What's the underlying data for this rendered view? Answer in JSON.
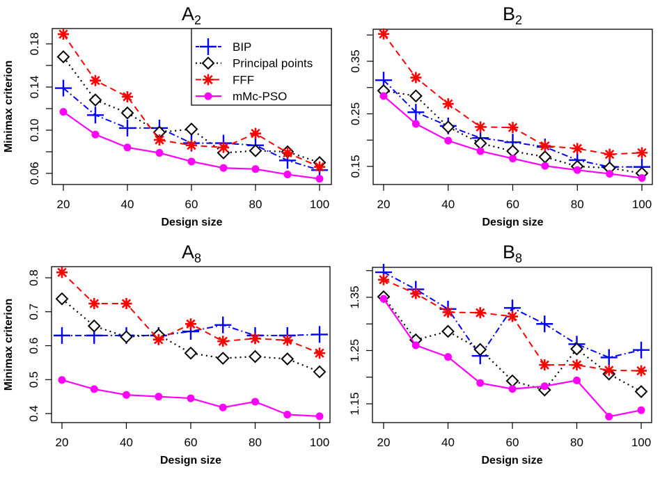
{
  "figure": {
    "ylabel": "Minimax criterion",
    "xlabel": "Design size"
  },
  "legend": {
    "placement": "top-right of panel A2",
    "entries": [
      {
        "name": "BIP",
        "color": "#0000ff",
        "line": "dashdot",
        "marker": "plus"
      },
      {
        "name": "Principal points",
        "color": "#000000",
        "line": "dotted",
        "marker": "diamond"
      },
      {
        "name": "FFF",
        "color": "#ff0000",
        "line": "dashed",
        "marker": "asterisk"
      },
      {
        "name": "mMc-PSO",
        "color": "#ff00ff",
        "line": "solid",
        "marker": "dot"
      }
    ]
  },
  "chart_data": [
    {
      "type": "line",
      "title": "A",
      "title_sub": "2",
      "xlabel": "Design size",
      "ylabel": "Minimax criterion",
      "x": [
        20,
        30,
        40,
        50,
        60,
        70,
        80,
        90,
        100
      ],
      "xticks": [
        20,
        40,
        60,
        80,
        100
      ],
      "yticks": [
        0.06,
        0.08,
        0.1,
        0.12,
        0.14,
        0.16,
        0.18
      ],
      "ytick_labels": [
        "0.06",
        "",
        "0.10",
        "",
        "0.14",
        "",
        "0.18"
      ],
      "grid": false,
      "show_ylabel": true,
      "has_legend": true,
      "series": [
        {
          "name": "BIP",
          "values": [
            0.139,
            0.114,
            0.102,
            0.102,
            0.088,
            0.088,
            0.086,
            0.072,
            0.063
          ]
        },
        {
          "name": "Principal points",
          "values": [
            0.168,
            0.128,
            0.116,
            0.098,
            0.101,
            0.079,
            0.081,
            0.08,
            0.07
          ]
        },
        {
          "name": "FFF",
          "values": [
            0.189,
            0.146,
            0.131,
            0.091,
            0.086,
            0.084,
            0.097,
            0.079,
            0.066
          ]
        },
        {
          "name": "mMc-PSO",
          "values": [
            0.117,
            0.096,
            0.084,
            0.079,
            0.071,
            0.065,
            0.064,
            0.059,
            0.055
          ]
        }
      ]
    },
    {
      "type": "line",
      "title": "B",
      "title_sub": "2",
      "xlabel": "Design size",
      "ylabel": "",
      "x": [
        20,
        30,
        40,
        50,
        60,
        70,
        80,
        90,
        100
      ],
      "xticks": [
        20,
        40,
        60,
        80,
        100
      ],
      "yticks": [
        0.15,
        0.2,
        0.25,
        0.3,
        0.35,
        0.4
      ],
      "ytick_labels": [
        "0.15",
        "",
        "0.25",
        "",
        "0.35",
        ""
      ],
      "grid": false,
      "show_ylabel": false,
      "has_legend": false,
      "series": [
        {
          "name": "BIP",
          "values": [
            0.314,
            0.253,
            0.227,
            0.204,
            0.196,
            0.187,
            0.162,
            0.149,
            0.149
          ]
        },
        {
          "name": "Principal points",
          "values": [
            0.294,
            0.284,
            0.225,
            0.194,
            0.179,
            0.168,
            0.15,
            0.147,
            0.137
          ]
        },
        {
          "name": "FFF",
          "values": [
            0.402,
            0.319,
            0.269,
            0.225,
            0.224,
            0.189,
            0.184,
            0.173,
            0.176
          ]
        },
        {
          "name": "mMc-PSO",
          "values": [
            0.284,
            0.231,
            0.199,
            0.179,
            0.165,
            0.151,
            0.143,
            0.136,
            0.128
          ]
        }
      ]
    },
    {
      "type": "line",
      "title": "A",
      "title_sub": "8",
      "xlabel": "Design size",
      "ylabel": "Minimax criterion",
      "x": [
        20,
        30,
        40,
        50,
        60,
        70,
        80,
        90,
        100
      ],
      "xticks": [
        20,
        40,
        60,
        80,
        100
      ],
      "yticks": [
        0.4,
        0.5,
        0.6,
        0.7,
        0.8
      ],
      "ytick_labels": [
        "0.4",
        "0.5",
        "0.6",
        "0.7",
        "0.8"
      ],
      "grid": false,
      "show_ylabel": true,
      "has_legend": false,
      "series": [
        {
          "name": "BIP",
          "values": [
            0.63,
            0.63,
            0.63,
            0.63,
            0.642,
            0.661,
            0.63,
            0.63,
            0.633
          ]
        },
        {
          "name": "Principal points",
          "values": [
            0.738,
            0.658,
            0.626,
            0.632,
            0.578,
            0.563,
            0.568,
            0.561,
            0.523
          ]
        },
        {
          "name": "FFF",
          "values": [
            0.816,
            0.724,
            0.724,
            0.618,
            0.664,
            0.613,
            0.621,
            0.616,
            0.578
          ]
        },
        {
          "name": "mMc-PSO",
          "values": [
            0.499,
            0.472,
            0.455,
            0.45,
            0.445,
            0.418,
            0.435,
            0.397,
            0.392
          ]
        }
      ]
    },
    {
      "type": "line",
      "title": "B",
      "title_sub": "8",
      "xlabel": "Design size",
      "ylabel": "",
      "x": [
        20,
        30,
        40,
        50,
        60,
        70,
        80,
        90,
        100
      ],
      "xticks": [
        20,
        40,
        60,
        80,
        100
      ],
      "yticks": [
        1.15,
        1.2,
        1.25,
        1.3,
        1.35,
        1.4
      ],
      "ytick_labels": [
        "1.15",
        "",
        "1.25",
        "",
        "1.35",
        ""
      ],
      "grid": false,
      "show_ylabel": false,
      "has_legend": false,
      "series": [
        {
          "name": "BIP",
          "values": [
            1.397,
            1.365,
            1.328,
            1.24,
            1.33,
            1.3,
            1.262,
            1.237,
            1.251
          ]
        },
        {
          "name": "Principal points",
          "values": [
            1.351,
            1.27,
            1.286,
            1.252,
            1.193,
            1.176,
            1.253,
            1.206,
            1.173
          ]
        },
        {
          "name": "FFF",
          "values": [
            1.383,
            1.357,
            1.322,
            1.321,
            1.314,
            1.223,
            1.223,
            1.213,
            1.212
          ]
        },
        {
          "name": "mMc-PSO",
          "values": [
            1.347,
            1.26,
            1.238,
            1.189,
            1.178,
            1.183,
            1.194,
            1.126,
            1.138
          ]
        }
      ]
    }
  ]
}
